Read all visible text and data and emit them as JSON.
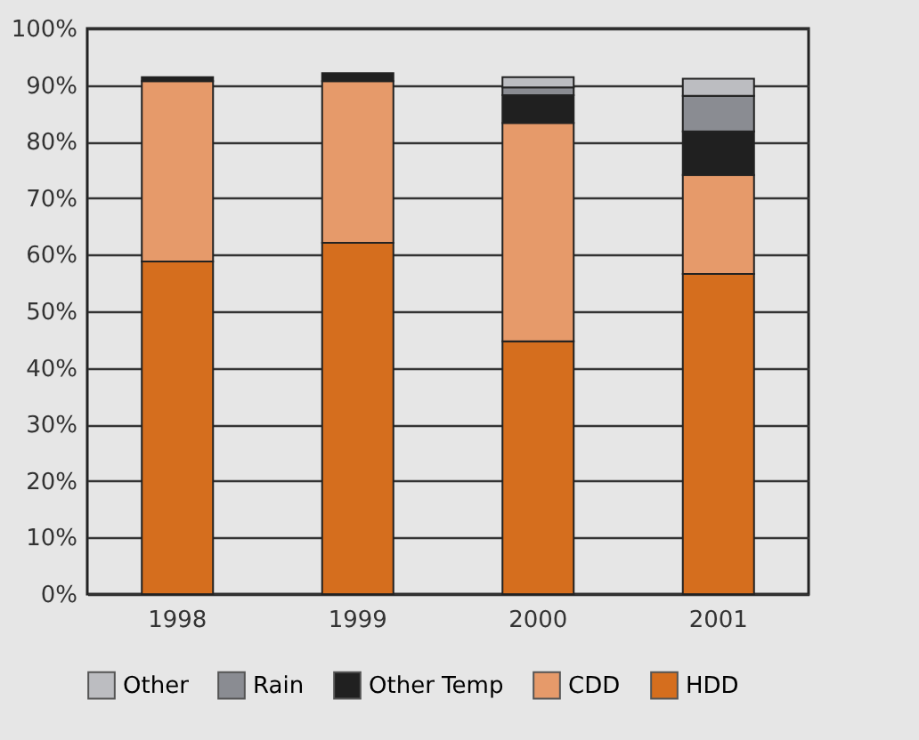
{
  "chart_data": {
    "type": "bar",
    "stacked": true,
    "categories": [
      "1998",
      "1999",
      "2000",
      "2001"
    ],
    "series": [
      {
        "name": "HDD",
        "color": "#d56e1e",
        "values": [
          58.8,
          62.1,
          44.7,
          56.6
        ]
      },
      {
        "name": "CDD",
        "color": "#e69a6a",
        "values": [
          31.9,
          28.6,
          38.6,
          17.5
        ]
      },
      {
        "name": "Other Temp",
        "color": "#202020",
        "values": [
          0.7,
          1.4,
          4.9,
          7.7
        ]
      },
      {
        "name": "Rain",
        "color": "#8a8c92",
        "values": [
          null,
          null,
          1.4,
          6.3
        ]
      },
      {
        "name": "Other",
        "color": "#bcbdc1",
        "values": [
          null,
          null,
          1.8,
          3.0
        ]
      }
    ],
    "ylim": [
      0,
      100
    ],
    "yticks": [
      {
        "value": 0,
        "label": "0%"
      },
      {
        "value": 10,
        "label": "10%"
      },
      {
        "value": 20,
        "label": "20%"
      },
      {
        "value": 30,
        "label": "30%"
      },
      {
        "value": 40,
        "label": "40%"
      },
      {
        "value": 50,
        "label": "50%"
      },
      {
        "value": 60,
        "label": "60%"
      },
      {
        "value": 70,
        "label": "70%"
      },
      {
        "value": 80,
        "label": "80%"
      },
      {
        "value": 90,
        "label": "90%"
      },
      {
        "value": 100,
        "label": "100%"
      }
    ],
    "grid": "y",
    "legend": "bottom"
  }
}
